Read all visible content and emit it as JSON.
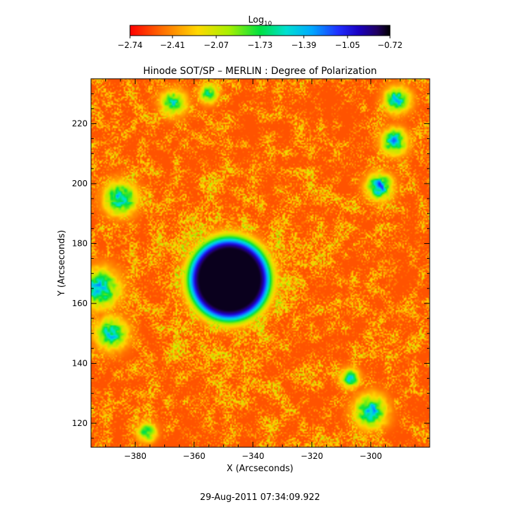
{
  "chart_data": {
    "type": "heatmap",
    "title": "Hinode SOT/SP – MERLIN : Degree of Polarization",
    "xlabel": "X (Arcseconds)",
    "ylabel": "Y (Arcseconds)",
    "xlim": [
      -395,
      -280
    ],
    "ylim": [
      112,
      235
    ],
    "x_ticks": [
      -380,
      -360,
      -340,
      -320,
      -300
    ],
    "y_ticks": [
      120,
      140,
      160,
      180,
      200,
      220
    ],
    "colorbar": {
      "title_main": "Log",
      "title_sub": "10",
      "range": [
        -2.74,
        -0.72
      ],
      "ticks": [
        -2.74,
        -2.41,
        -2.07,
        -1.73,
        -1.39,
        -1.05,
        -0.72
      ],
      "tick_labels": [
        "−2.74",
        "−2.41",
        "−2.07",
        "−1.73",
        "−1.39",
        "−1.05",
        "−0.72"
      ]
    },
    "colors": [
      "#ff0000",
      "#ff6a00",
      "#ffd800",
      "#a8f000",
      "#00e040",
      "#00e0d0",
      "#00a8ff",
      "#2030ff",
      "#1a00c0",
      "#200060",
      "#000000"
    ],
    "background_level": -2.55,
    "features": [
      {
        "name": "sunspot",
        "x": -348,
        "y": 168,
        "radius_arcsec": 10,
        "peak": -0.75
      },
      {
        "name": "plage-left-1",
        "x": -385,
        "y": 195,
        "radius_arcsec": 5,
        "peak": -1.3
      },
      {
        "name": "plage-left-2",
        "x": -392,
        "y": 165,
        "radius_arcsec": 6,
        "peak": -1.3
      },
      {
        "name": "plage-left-3",
        "x": -388,
        "y": 150,
        "radius_arcsec": 5,
        "peak": -1.4
      },
      {
        "name": "plage-top-1",
        "x": -367,
        "y": 227,
        "radius_arcsec": 4,
        "peak": -1.5
      },
      {
        "name": "plage-top-2",
        "x": -355,
        "y": 230,
        "radius_arcsec": 3,
        "peak": -1.6
      },
      {
        "name": "plage-right-1",
        "x": -291,
        "y": 228,
        "radius_arcsec": 4,
        "peak": -1.3
      },
      {
        "name": "plage-right-2",
        "x": -292,
        "y": 214,
        "radius_arcsec": 4,
        "peak": -1.3
      },
      {
        "name": "plage-right-3",
        "x": -297,
        "y": 199,
        "radius_arcsec": 4,
        "peak": -1.2
      },
      {
        "name": "plage-bottom-1",
        "x": -300,
        "y": 124,
        "radius_arcsec": 5,
        "peak": -1.3
      },
      {
        "name": "plage-bottom-2",
        "x": -307,
        "y": 135,
        "radius_arcsec": 3,
        "peak": -1.5
      },
      {
        "name": "plage-bottom-3",
        "x": -376,
        "y": 117,
        "radius_arcsec": 3,
        "peak": -1.6
      }
    ]
  },
  "timestamp": "29-Aug-2011 07:34:09.922"
}
